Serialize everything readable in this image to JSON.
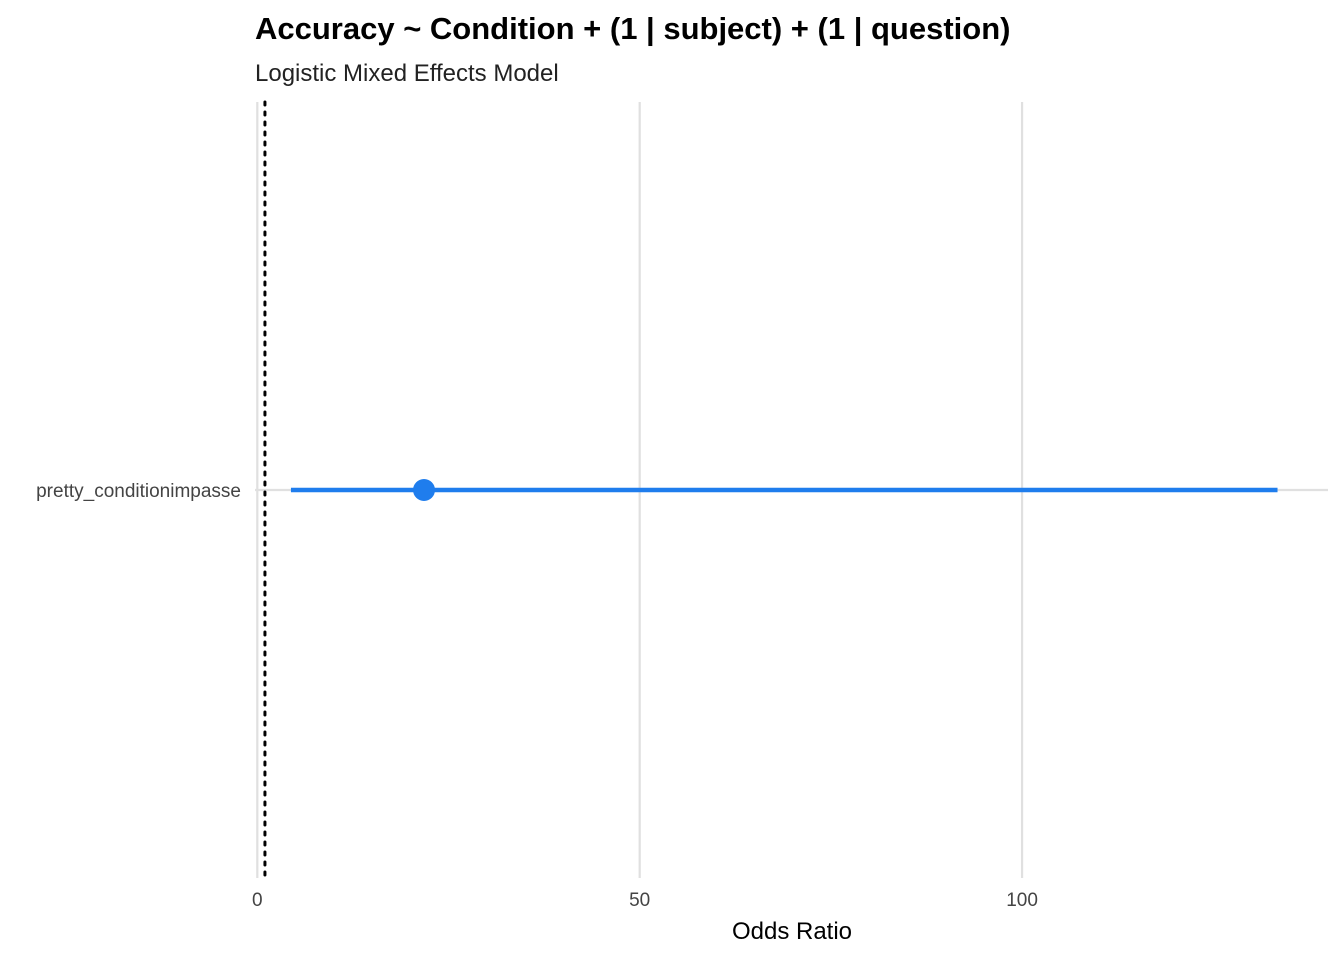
{
  "chart_data": {
    "type": "forest",
    "title": "Accuracy ~ Condition + (1 | subject) + (1 | question)",
    "subtitle": "Logistic Mixed Effects Model",
    "xlabel": "Odds Ratio",
    "ylabel": "",
    "xlim": [
      -0.3,
      140
    ],
    "x_ticks": [
      0,
      50,
      100
    ],
    "x_tick_labels": [
      "0",
      "50",
      "100"
    ],
    "reference_line": 1,
    "grid": true,
    "terms": [
      {
        "label": "pretty_conditionimpasse",
        "estimate": 21.8,
        "ci_low": 4.4,
        "ci_high": 133.4
      }
    ],
    "colors": {
      "estimate": "#1f7ded",
      "grid": "#e0e0e0",
      "reference": "#000000"
    }
  }
}
